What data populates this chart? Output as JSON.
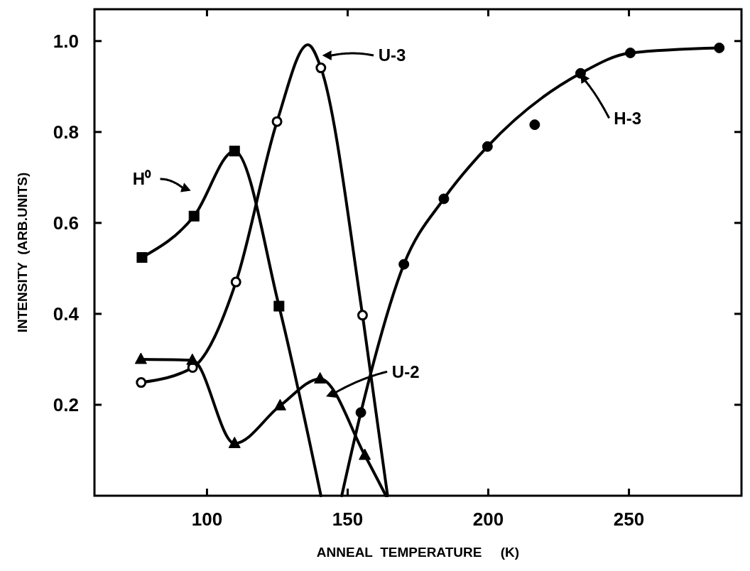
{
  "chart_data": {
    "type": "line",
    "xlabel": "ANNEAL  TEMPERATURE     (K)",
    "ylabel": "INTENSITY  (ARB.UNITS)",
    "xlim": [
      60,
      290
    ],
    "xticks": [
      100,
      150,
      200,
      250
    ],
    "ylim": [
      0,
      1.07
    ],
    "yticks": [
      0.2,
      0.4,
      0.6,
      0.8,
      {
        "value": 1,
        "label": "1.0"
      }
    ],
    "grid": false,
    "series": [
      {
        "color": "#000000",
        "marker": "none",
        "x": [
          76.9,
          95.4,
          109.8,
          125.6,
          140.5
        ],
        "values": [
          0.524,
          0.615,
          0.758,
          0.417,
          0
        ]
      },
      {
        "color": "#000000",
        "marker": "none",
        "x": [
          76.6,
          94.9,
          110.3,
          124.9,
          135.9,
          140.5,
          155.3,
          164.2
        ],
        "values": [
          0.249,
          0.282,
          0.47,
          0.823,
          0.992,
          0.941,
          0.397,
          0
        ]
      },
      {
        "color": "#000000",
        "marker": "none",
        "x": [
          76.5,
          94.8,
          109.8,
          126,
          140.2,
          156.1,
          163.6
        ],
        "values": [
          0.3,
          0.298,
          0.115,
          0.198,
          0.257,
          0.089,
          0
        ]
      },
      {
        "color": "#000000",
        "marker": "none",
        "x": [
          147.9,
          154.7,
          170,
          184.2,
          199.7,
          232.8,
          250.5,
          282.1
        ],
        "values": [
          0,
          0.183,
          0.509,
          0.653,
          0.768,
          0.929,
          0.974,
          0.985
        ]
      },
      {
        "type": "scatter",
        "color": "#000000",
        "marker": "square",
        "x": [
          76.9,
          95.4,
          109.8,
          125.6
        ],
        "values": [
          0.524,
          0.615,
          0.758,
          0.417
        ]
      },
      {
        "type": "scatter",
        "color": "#000000",
        "marker": "circle",
        "x": [
          76.6,
          94.9,
          110.3,
          124.9,
          140.5,
          155.3
        ],
        "values": [
          0.249,
          0.282,
          0.47,
          0.823,
          0.941,
          0.397
        ]
      },
      {
        "type": "scatter",
        "color": "#000000",
        "marker": "triangle",
        "x": [
          76.5,
          94.8,
          109.8,
          126,
          140.2,
          156.1
        ],
        "values": [
          0.3,
          0.298,
          0.115,
          0.198,
          0.257,
          0.089
        ]
      },
      {
        "type": "scatter",
        "color": "#000000",
        "marker": "circle",
        "x": [
          154.7,
          170,
          184.2,
          199.7,
          216.5,
          232.8,
          250.5,
          282.1
        ],
        "values": [
          0.183,
          0.509,
          0.653,
          0.768,
          0.816,
          0.929,
          0.974,
          0.985
        ]
      }
    ],
    "annotations": [
      "H⁰",
      "U-3",
      "U-2",
      {
        "text": "H-3",
        "x": 232.8,
        "y": 0.929
      }
    ]
  }
}
